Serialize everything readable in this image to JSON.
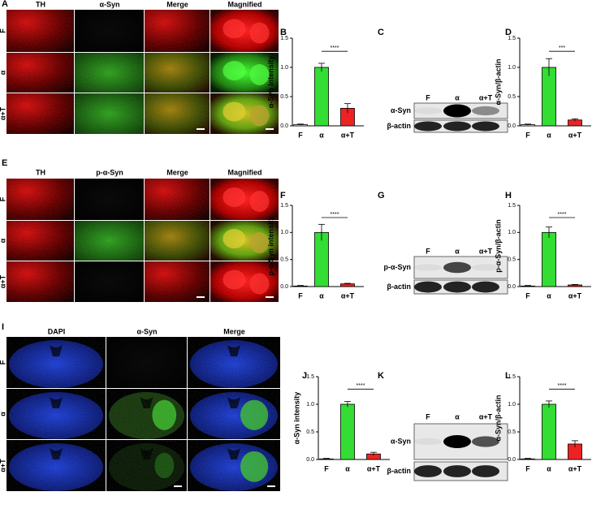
{
  "micrographs": [
    {
      "letter": "A",
      "columns": [
        "TH",
        "α-Syn",
        "Merge",
        "Magnified"
      ],
      "rows": [
        "F",
        "α",
        "α+T"
      ]
    },
    {
      "letter": "E",
      "columns": [
        "TH",
        "p-α-Syn",
        "Merge",
        "Magnified"
      ],
      "rows": [
        "F",
        "α",
        "α+T"
      ]
    },
    {
      "letter": "I",
      "columns": [
        "DAPI",
        "α-Syn",
        "Merge"
      ],
      "rows": [
        "F",
        "α",
        "α+T"
      ]
    }
  ],
  "blots": [
    {
      "letter": "C",
      "lanes": [
        "F",
        "α",
        "α+T"
      ],
      "bands": [
        "α-Syn",
        "β-actin"
      ]
    },
    {
      "letter": "G",
      "lanes": [
        "F",
        "α",
        "α+T"
      ],
      "bands": [
        "p-α-Syn",
        "β-actin"
      ]
    },
    {
      "letter": "K",
      "lanes": [
        "F",
        "α",
        "α+T"
      ],
      "bands": [
        "α-Syn",
        "β-actin"
      ]
    }
  ],
  "chart_data": [
    {
      "letter": "B",
      "type": "bar",
      "ylabel": "α-Syn intensity",
      "categories": [
        "F",
        "α",
        "α+T"
      ],
      "values": [
        0.02,
        1.0,
        0.3
      ],
      "errors": [
        0.01,
        0.07,
        0.08
      ],
      "colors": [
        "#ffffff",
        "#33dd33",
        "#ee2222"
      ],
      "significance": "****",
      "ylim": [
        0,
        1.5
      ],
      "yticks": [
        {
          "value": 0,
          "label": "0.0"
        },
        {
          "value": 0.5,
          "label": "0.5"
        },
        {
          "value": 1,
          "label": "1.0"
        },
        {
          "value": 1.5,
          "label": "1.5"
        }
      ]
    },
    {
      "letter": "D",
      "type": "bar",
      "ylabel": "α-Syn/β-actin",
      "categories": [
        "F",
        "α",
        "α+T"
      ],
      "values": [
        0.02,
        1.0,
        0.1
      ],
      "errors": [
        0.01,
        0.15,
        0.02
      ],
      "colors": [
        "#ffffff",
        "#33dd33",
        "#ee2222"
      ],
      "significance": "***",
      "ylim": [
        0,
        1.5
      ],
      "yticks": [
        {
          "value": 0,
          "label": "0.0"
        },
        {
          "value": 0.5,
          "label": "0.5"
        },
        {
          "value": 1,
          "label": "1.0"
        },
        {
          "value": 1.5,
          "label": "1.5"
        }
      ]
    },
    {
      "letter": "F",
      "type": "bar",
      "ylabel": "p-α-Syn intensity",
      "categories": [
        "F",
        "α",
        "α+T"
      ],
      "values": [
        0.01,
        1.0,
        0.05
      ],
      "errors": [
        0.01,
        0.15,
        0.01
      ],
      "colors": [
        "#ffffff",
        "#33dd33",
        "#ee2222"
      ],
      "significance": "****",
      "ylim": [
        0,
        1.5
      ],
      "yticks": [
        {
          "value": 0,
          "label": "0.0"
        },
        {
          "value": 0.5,
          "label": "0.5"
        },
        {
          "value": 1,
          "label": "1.0"
        },
        {
          "value": 1.5,
          "label": "1.5"
        }
      ]
    },
    {
      "letter": "H",
      "type": "bar",
      "ylabel": "p-α-Syn/β-actin",
      "categories": [
        "F",
        "α",
        "α+T"
      ],
      "values": [
        0.01,
        1.0,
        0.03
      ],
      "errors": [
        0.01,
        0.1,
        0.01
      ],
      "colors": [
        "#ffffff",
        "#33dd33",
        "#ee2222"
      ],
      "significance": "****",
      "ylim": [
        0,
        1.5
      ],
      "yticks": [
        {
          "value": 0,
          "label": "0.0"
        },
        {
          "value": 0.5,
          "label": "0.5"
        },
        {
          "value": 1,
          "label": "1.0"
        },
        {
          "value": 1.5,
          "label": "1.5"
        }
      ]
    },
    {
      "letter": "J",
      "type": "bar",
      "ylabel": "α-Syn intensity",
      "categories": [
        "F",
        "α",
        "α+T"
      ],
      "values": [
        0.01,
        1.0,
        0.1
      ],
      "errors": [
        0.01,
        0.05,
        0.03
      ],
      "colors": [
        "#ffffff",
        "#33dd33",
        "#ee2222"
      ],
      "significance": "****",
      "ylim": [
        0,
        1.5
      ],
      "yticks": [
        {
          "value": 0,
          "label": "0.0"
        },
        {
          "value": 0.5,
          "label": "0.5"
        },
        {
          "value": 1,
          "label": "1.0"
        },
        {
          "value": 1.5,
          "label": "1.5"
        }
      ]
    },
    {
      "letter": "L",
      "type": "bar",
      "ylabel": "α-Syn/β-actin",
      "categories": [
        "F",
        "α",
        "α+T"
      ],
      "values": [
        0.01,
        1.0,
        0.28
      ],
      "errors": [
        0.01,
        0.06,
        0.06
      ],
      "colors": [
        "#ffffff",
        "#33dd33",
        "#ee2222"
      ],
      "significance": "****",
      "ylim": [
        0,
        1.5
      ],
      "yticks": [
        {
          "value": 0,
          "label": "0.0"
        },
        {
          "value": 0.5,
          "label": "0.5"
        },
        {
          "value": 1,
          "label": "1.0"
        },
        {
          "value": 1.5,
          "label": "1.5"
        }
      ]
    }
  ]
}
